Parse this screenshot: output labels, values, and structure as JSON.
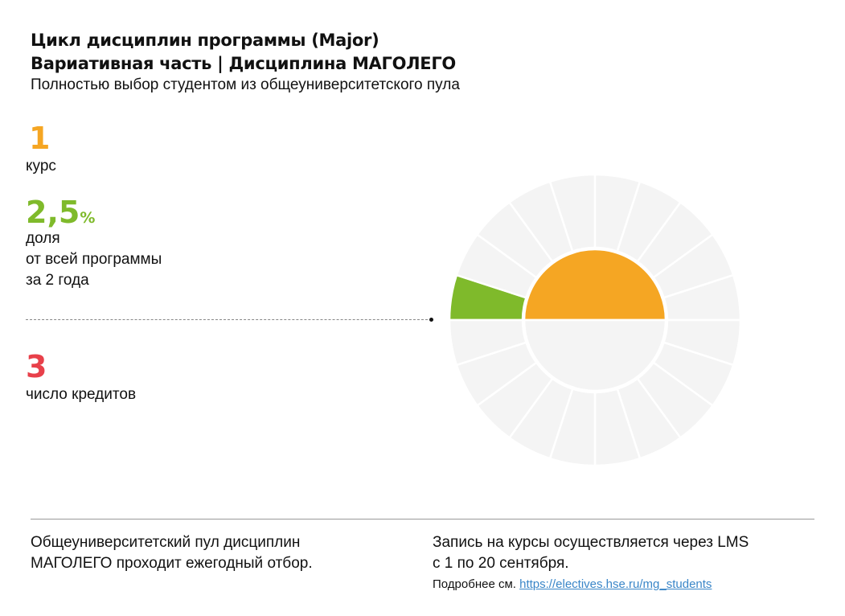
{
  "header": {
    "title_line1": "Цикл дисциплин программы (Major)",
    "title_line2": "Вариативная часть | Дисциплина МАГОЛЕГО",
    "subtitle": "Полностью выбор студентом из общеуниверситетского пула"
  },
  "stats": {
    "course_value": "1",
    "course_label": "курс",
    "share_value": "2,5",
    "share_unit": "%",
    "share_label_lines": [
      "доля",
      "от всей программы",
      "за 2 года"
    ],
    "credits_value": "3",
    "credits_label": "число кредитов"
  },
  "colors": {
    "orange": "#f5a623",
    "green": "#7fba2b",
    "red": "#e8404a",
    "grey": "#f4f4f4"
  },
  "chart_data": {
    "type": "pie",
    "outer_ring_segments": 20,
    "highlighted_segments": 1,
    "share_percent": 2.5,
    "inner_years_total": 2,
    "inner_year_highlighted": 1
  },
  "footer": {
    "left_line1": "Общеуниверситетский пул дисциплин",
    "left_line2": "МАГОЛЕГО проходит ежегодный отбор.",
    "right_line1": "Запись на курсы осуществляется через LMS",
    "right_line2": "с 1 по 20 сентября.",
    "more_label": "Подробнее см.",
    "link": "https://electives.hse.ru/mg_students"
  }
}
